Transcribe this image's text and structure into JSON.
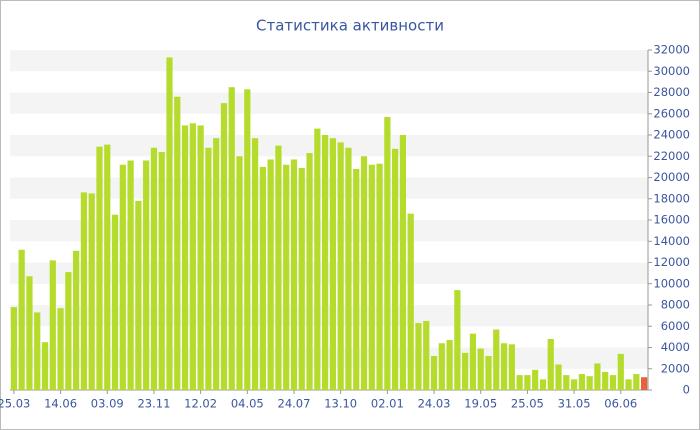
{
  "chart_data": {
    "type": "bar",
    "title": "Статистика активности",
    "categories": [
      "25.03",
      null,
      null,
      null,
      null,
      null,
      "14.06",
      null,
      null,
      null,
      null,
      null,
      "03.09",
      null,
      null,
      null,
      null,
      null,
      "23.11",
      null,
      null,
      null,
      null,
      null,
      "12.02",
      null,
      null,
      null,
      null,
      null,
      "04.05",
      null,
      null,
      null,
      null,
      null,
      "24.07",
      null,
      null,
      null,
      null,
      null,
      "13.10",
      null,
      null,
      null,
      null,
      null,
      "02.01",
      null,
      null,
      null,
      null,
      null,
      "24.03",
      null,
      null,
      null,
      null,
      null,
      "19.05",
      null,
      null,
      null,
      null,
      null,
      "25.05",
      null,
      null,
      null,
      null,
      null,
      "31.05",
      null,
      null,
      null,
      null,
      null,
      "06.06",
      null,
      null,
      null
    ],
    "values": [
      7800,
      13200,
      10700,
      7300,
      4500,
      12200,
      7700,
      11100,
      13100,
      18600,
      18500,
      22900,
      23100,
      16500,
      21200,
      21600,
      17800,
      21600,
      22800,
      22400,
      31300,
      27600,
      24900,
      25100,
      24900,
      22800,
      23700,
      27000,
      28500,
      22000,
      28300,
      23700,
      21000,
      21700,
      23000,
      21200,
      21700,
      20900,
      22300,
      24600,
      24000,
      23700,
      23300,
      22800,
      20800,
      22000,
      21200,
      21300,
      25700,
      22700,
      24000,
      16600,
      6300,
      6500,
      3200,
      4400,
      4700,
      9400,
      3500,
      5300,
      3900,
      3200,
      5700,
      4400,
      4300,
      1400,
      1400,
      1900,
      1000,
      4800,
      2400,
      1400,
      1000,
      1500,
      1300,
      2500,
      1700,
      1400,
      3400,
      1000,
      1500,
      1200
    ],
    "color": "#b5dc2c",
    "last_color": "#e8603c",
    "ylim": [
      0,
      32000
    ],
    "yticks": [
      0,
      2000,
      4000,
      6000,
      8000,
      10000,
      12000,
      14000,
      16000,
      18000,
      20000,
      22000,
      24000,
      26000,
      28000,
      30000,
      32000
    ],
    "y_axis_side": "right",
    "grid": "bands"
  }
}
